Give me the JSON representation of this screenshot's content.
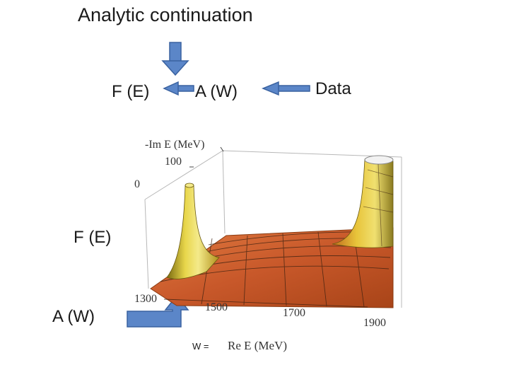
{
  "title": "Analytic continuation",
  "flow": {
    "f_e": "F (E)",
    "a_w": "A (W)",
    "data": "Data"
  },
  "left_labels": {
    "f_e": "F (E)",
    "a_w": "A (W)"
  },
  "plot": {
    "z_axis_label": "-Im E (MeV)",
    "z_ticks": [
      "100",
      "0"
    ],
    "x_ticks": [
      "1300",
      "1500",
      "1700",
      "1900"
    ],
    "x_axis_label": "Re E (MeV)",
    "w_label": "W ="
  },
  "colors": {
    "arrow_fill": "#5b86c8",
    "arrow_stroke": "#3a62a0",
    "surface": "#c8582a",
    "peak_yellow": "#e8d64a"
  }
}
